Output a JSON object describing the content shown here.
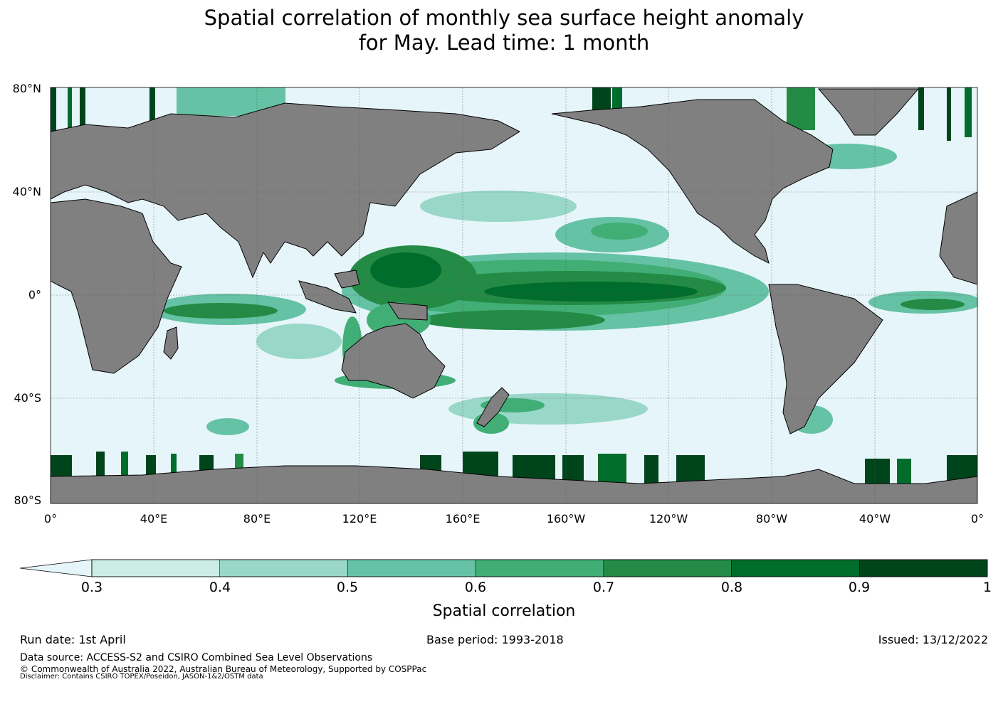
{
  "title": {
    "line1": "Spatial correlation of monthly sea surface height anomaly",
    "line2": "for May. Lead time: 1 month"
  },
  "map": {
    "lat_ticks": [
      "80°N",
      "40°N",
      "0°",
      "40°S",
      "80°S"
    ],
    "lon_ticks": [
      "0°",
      "40°E",
      "80°E",
      "120°E",
      "160°E",
      "160°W",
      "120°W",
      "80°W",
      "40°W",
      "0°"
    ],
    "ocean_color": "#e6f5fa",
    "land_color": "#808080"
  },
  "colorbar": {
    "label": "Spatial correlation",
    "ticks": [
      "0.3",
      "0.4",
      "0.5",
      "0.6",
      "0.7",
      "0.8",
      "0.9",
      "1"
    ],
    "colors": [
      "#ccece6",
      "#99d8c9",
      "#66c2a4",
      "#41ae76",
      "#238b45",
      "#006d2c",
      "#00441b"
    ],
    "under_color": "#e6f5fa"
  },
  "footer": {
    "run_date": "Run date: 1st April",
    "base_period": "Base period: 1993-2018",
    "issued": "Issued: 13/12/2022",
    "data_source": "Data source: ACCESS-S2 and CSIRO Combined Sea Level Observations",
    "copyright": "© Commonwealth of Australia 2022, Australian Bureau of Meteorology, Supported by COSPPac",
    "disclaimer": "Disclaimer: Contains CSIRO TOPEX/Poseidon, JASON-1&2/OSTM data"
  }
}
